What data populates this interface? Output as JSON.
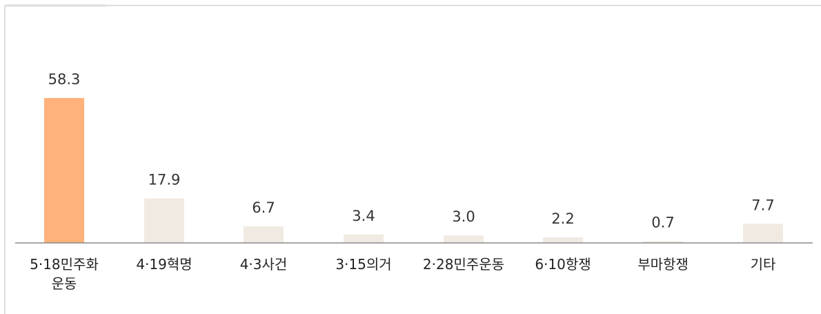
{
  "chart_data": {
    "type": "bar",
    "categories": [
      [
        "5·18민주화",
        "운동"
      ],
      [
        "4·19혁명"
      ],
      [
        "4·3사건"
      ],
      [
        "3·15의거"
      ],
      [
        "2·28민주운동"
      ],
      [
        "6·10항쟁"
      ],
      [
        "부마항쟁"
      ],
      [
        "기타"
      ]
    ],
    "values": [
      58.3,
      17.9,
      6.7,
      3.4,
      3.0,
      2.2,
      0.7,
      7.7
    ],
    "value_labels": [
      "58.3",
      "17.9",
      "6.7",
      "3.4",
      "3.0",
      "2.2",
      "0.7",
      "7.7"
    ],
    "ylim": [
      0,
      58.3
    ],
    "grid": false,
    "legend": "none",
    "colors": {
      "highlight": "#FFB27C",
      "default": "#F1EAE3",
      "axis": "#888888",
      "frame": "#BBBBBB"
    }
  }
}
